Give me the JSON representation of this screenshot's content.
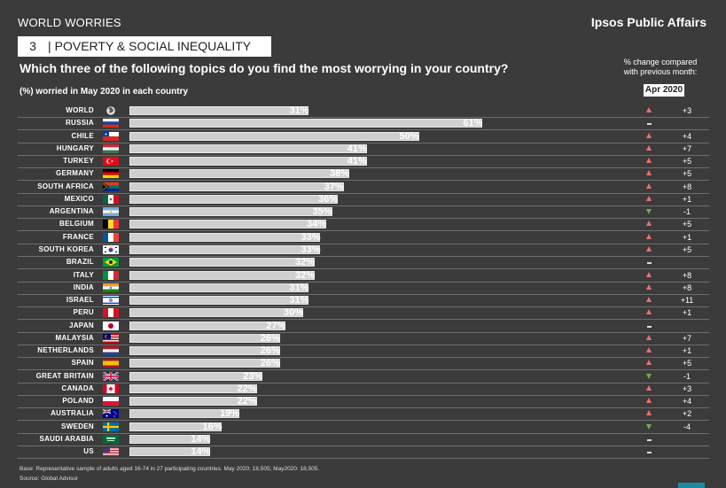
{
  "header": {
    "series_label": "WORLD WORRIES",
    "brand": "Ipsos Public Affairs",
    "topic_number": "3",
    "topic_sep": "|",
    "topic_title": "POVERTY & SOCIAL INEQUALITY",
    "question": "Which three of the following topics do you find the most worrying in your country?",
    "subhead": "(%) worried in May 2020 in each country",
    "change_note_1": "% change compared",
    "change_note_2": "with previous month:",
    "month": "Apr 2020"
  },
  "footer": {
    "base": "Base: Representative sample of adults aged 16-74 in 27 participating countries. May 2020: 18,505; May2020: 18,505.",
    "source": "Source: Global Advisor"
  },
  "colors": {
    "background": "#3b3b3b",
    "bar": "#cfcfcf",
    "up": "#ef6f6f",
    "down": "#6ab04c"
  },
  "chart_data": {
    "type": "bar",
    "orientation": "horizontal",
    "unit": "%",
    "xlim": [
      0,
      100
    ],
    "categories": [
      "WORLD",
      "RUSSIA",
      "CHILE",
      "HUNGARY",
      "TURKEY",
      "GERMANY",
      "SOUTH AFRICA",
      "MEXICO",
      "ARGENTINA",
      "BELGIUM",
      "FRANCE",
      "SOUTH KOREA",
      "BRAZIL",
      "ITALY",
      "INDIA",
      "ISRAEL",
      "PERU",
      "JAPAN",
      "MALAYSIA",
      "NETHERLANDS",
      "SPAIN",
      "GREAT BRITAIN",
      "CANADA",
      "POLAND",
      "AUSTRALIA",
      "SWEDEN",
      "SAUDI ARABIA",
      "US"
    ],
    "values": [
      31,
      61,
      50,
      41,
      41,
      38,
      37,
      36,
      35,
      34,
      33,
      33,
      32,
      32,
      31,
      31,
      30,
      27,
      26,
      26,
      26,
      23,
      22,
      22,
      19,
      16,
      14,
      14
    ],
    "labels": [
      "31%",
      "61%",
      "50%",
      "41%",
      "41%",
      "38%",
      "37%",
      "36%",
      "35%",
      "34%",
      "33%",
      "33%",
      "32%",
      "32%",
      "31%",
      "31%",
      "30%",
      "27%",
      "26%",
      "26%",
      "26%",
      "23%",
      "22%",
      "22%",
      "19%",
      "16%",
      "14%",
      "14%"
    ],
    "change_vs_previous_month": [
      "+3",
      "=",
      "+4",
      "+7",
      "+5",
      "+5",
      "+8",
      "+1",
      "-1",
      "+5",
      "+1",
      "+5",
      "=",
      "+8",
      "+8",
      "+11",
      "+1",
      "=",
      "+7",
      "+1",
      "+5",
      "-1",
      "+3",
      "+4",
      "+2",
      "-4",
      "=",
      "="
    ],
    "change_direction": [
      "up",
      "same",
      "up",
      "up",
      "up",
      "up",
      "up",
      "up",
      "down",
      "up",
      "up",
      "up",
      "same",
      "up",
      "up",
      "up",
      "up",
      "same",
      "up",
      "up",
      "up",
      "down",
      "up",
      "up",
      "up",
      "down",
      "same",
      "same"
    ],
    "flag_icons": [
      "globe-icon",
      "russia-flag-icon",
      "chile-flag-icon",
      "hungary-flag-icon",
      "turkey-flag-icon",
      "germany-flag-icon",
      "south-africa-flag-icon",
      "mexico-flag-icon",
      "argentina-flag-icon",
      "belgium-flag-icon",
      "france-flag-icon",
      "south-korea-flag-icon",
      "brazil-flag-icon",
      "italy-flag-icon",
      "india-flag-icon",
      "israel-flag-icon",
      "peru-flag-icon",
      "japan-flag-icon",
      "malaysia-flag-icon",
      "netherlands-flag-icon",
      "spain-flag-icon",
      "great-britain-flag-icon",
      "canada-flag-icon",
      "poland-flag-icon",
      "australia-flag-icon",
      "sweden-flag-icon",
      "saudi-arabia-flag-icon",
      "us-flag-icon"
    ]
  }
}
